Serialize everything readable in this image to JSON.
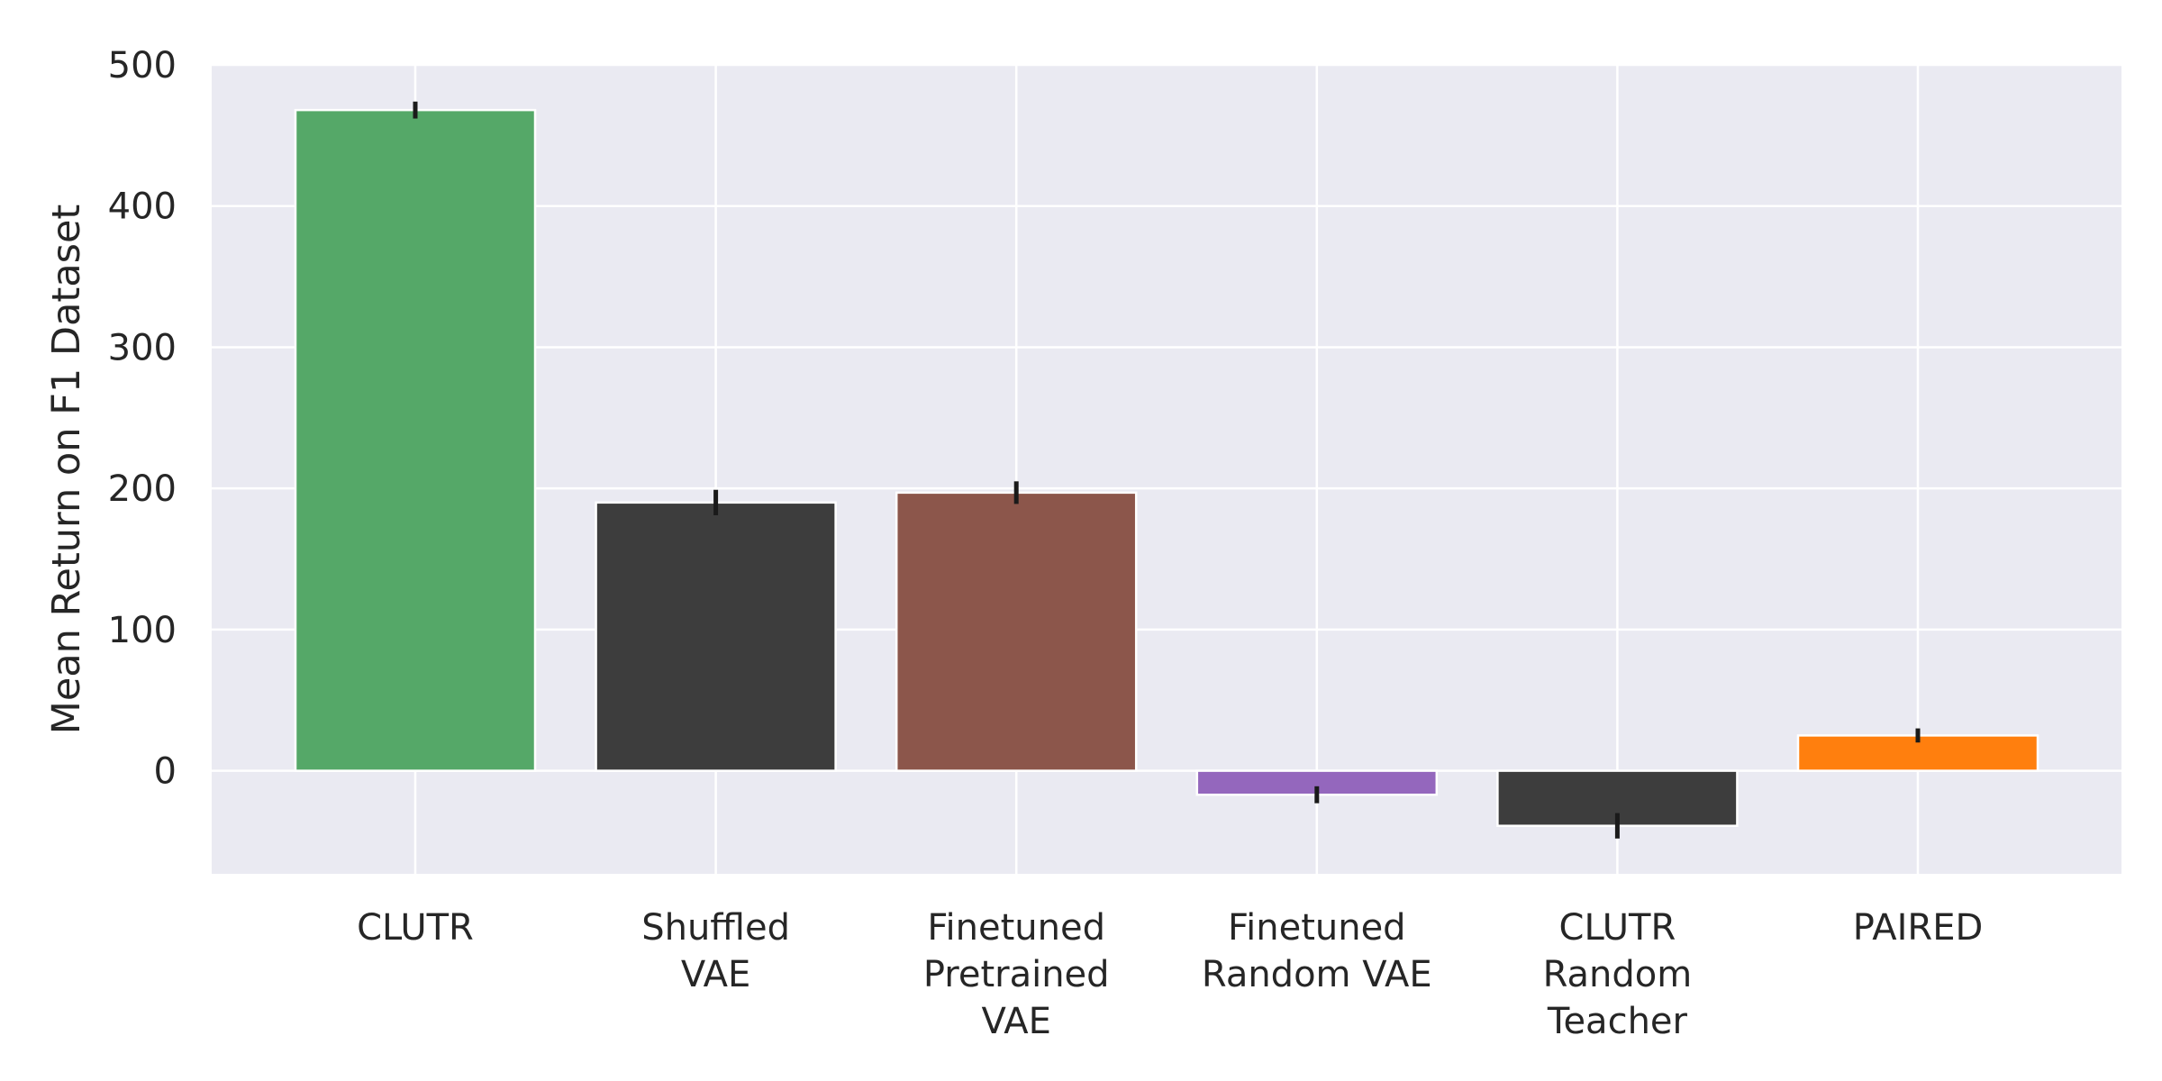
{
  "chart_data": {
    "type": "bar",
    "title": "",
    "xlabel": "",
    "ylabel": "Mean Return on F1 Dataset",
    "ylim": [
      -73,
      500
    ],
    "yticks": [
      0,
      100,
      200,
      300,
      400,
      500
    ],
    "grid": true,
    "categories": [
      [
        "CLUTR"
      ],
      [
        "Shuffled",
        "VAE"
      ],
      [
        "Finetuned",
        "Pretrained",
        "VAE"
      ],
      [
        "Finetuned",
        "Random VAE"
      ],
      [
        "CLUTR",
        "Random",
        "Teacher"
      ],
      [
        "PAIRED"
      ]
    ],
    "values": [
      468,
      190,
      197,
      -17,
      -39,
      25
    ],
    "error": [
      6,
      9,
      8,
      6,
      9,
      5
    ],
    "colors": [
      "#55a868",
      "#3d3d3d",
      "#8c564b",
      "#9467bd",
      "#3d3d3d",
      "#ff7f0e"
    ],
    "background": "#eaeaf2",
    "grid_color": "#ffffff"
  }
}
